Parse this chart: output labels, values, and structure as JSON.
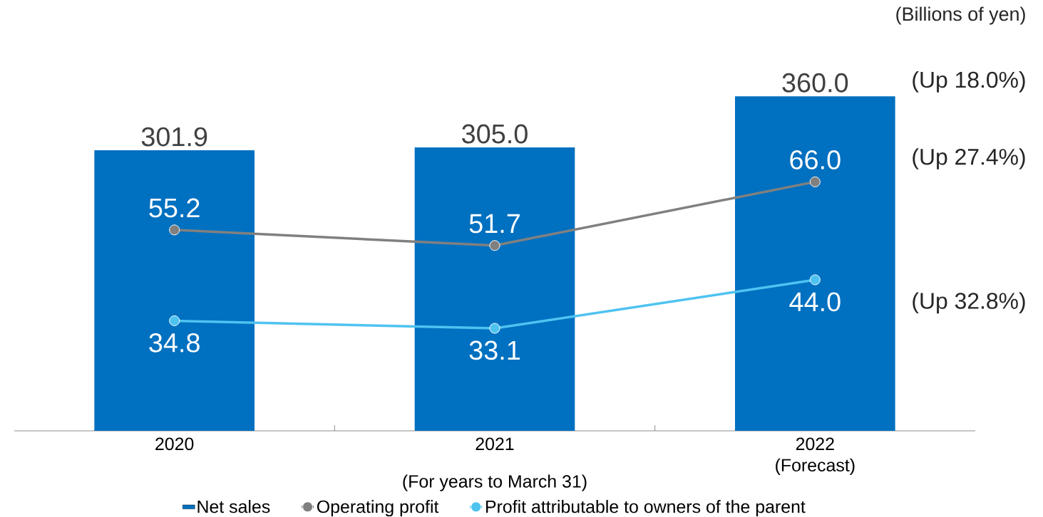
{
  "chart_data": {
    "type": "bar",
    "categories": [
      "2020",
      "2021",
      "2022 (Forecast)"
    ],
    "xlabel": "(For years to March 31)",
    "series": [
      {
        "name": "Net sales",
        "color": "#0070c0",
        "values": [
          301.9,
          305.0,
          360.0
        ],
        "value_labels": [
          "301.9",
          "305.0",
          "360.0"
        ]
      },
      {
        "name": "Operating profit",
        "type": "line",
        "axis": "y2",
        "color": "#808080",
        "values": [
          55.2,
          51.7,
          66.0
        ],
        "value_labels": [
          "55.2",
          "51.7",
          "66.0"
        ]
      },
      {
        "name": "Profit attributable to owners of the parent",
        "type": "line",
        "axis": "y2",
        "color": "#4fc3f0",
        "values": [
          34.8,
          33.1,
          44.0
        ],
        "value_labels": [
          "34.8",
          "33.1",
          "44.0"
        ]
      }
    ],
    "marker": "circle",
    "legend": "bottom",
    "tick_labels": "x",
    "annotations": [
      "(Billions of yen)",
      "(Up 18.0%)",
      "(Up 27.4%)",
      "(Up 32.8%)"
    ]
  }
}
